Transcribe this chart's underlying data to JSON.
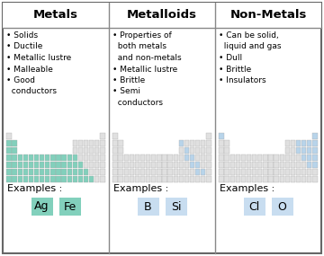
{
  "columns": [
    "Metals",
    "Metalloids",
    "Non-Metals"
  ],
  "background": "#ffffff",
  "border_color": "#888888",
  "metals_bullets": [
    "Solids",
    "Ductile",
    "Metallic lustre",
    "Malleable",
    "Good\n  conductors"
  ],
  "metalloids_bullets": [
    "Properties of\n  both metals\n  and non-metals",
    "Metallic lustre",
    "Brittle",
    "Semi\n  conductors"
  ],
  "nonmetals_bullets": [
    "Can be solid,\n  liquid and gas",
    "Dull",
    "Brittle",
    "Insulators"
  ],
  "metals_color": "#82d0bc",
  "metalloids_color": "#b8d4ea",
  "nonmetals_color": "#b8d4ea",
  "cell_grey": "#e0e0e0",
  "example_label": "Examples :",
  "metals_examples": [
    "Ag",
    "Fe"
  ],
  "metalloids_examples": [
    "B",
    "Si"
  ],
  "nonmetals_examples": [
    "Cl",
    "O"
  ],
  "metals_example_color": "#82d0bc",
  "metalloids_example_color": "#c8ddf0",
  "nonmetals_example_color": "#c8ddf0",
  "header_fontsize": 9.5,
  "body_fontsize": 6.5,
  "example_label_fontsize": 8,
  "example_elem_fontsize": 9
}
